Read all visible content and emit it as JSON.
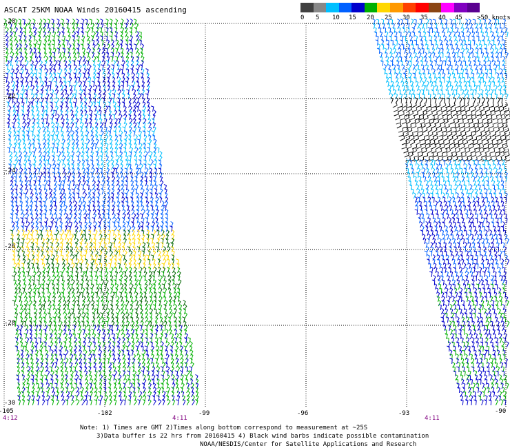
{
  "title": "ASCAT 25KM NOAA Winds 20160415 ascending",
  "legend": {
    "colors": [
      "#404040",
      "#888888",
      "#00bfff",
      "#0060ff",
      "#0000cc",
      "#00b000",
      "#ffd700",
      "#ff9900",
      "#ff4000",
      "#ff0000",
      "#8b4513",
      "#ff00ff",
      "#8000c0",
      "#5a0090"
    ],
    "labels": [
      "0",
      "5",
      "10",
      "15",
      "20",
      "25",
      "30",
      "35",
      "40",
      "45",
      ">50 knots"
    ]
  },
  "map": {
    "lat_labels": [
      "-20",
      "-22",
      "-24",
      "-26",
      "-28",
      "-30"
    ],
    "lon_labels": [
      "-105",
      "-102",
      "-99",
      "-96",
      "-93",
      "-90"
    ],
    "time_labels": [
      "4:12",
      "4:11",
      "4:11"
    ]
  },
  "notes": [
    "Note: 1) Times are GMT 2)Times along bottom correspond to measurement at ~25S",
    "3)Data buffer is 22 hrs from 20160415 4) Black wind barbs indicate possible contamination",
    "NOAA/NESDIS/Center for Satellite Applications and Research"
  ]
}
